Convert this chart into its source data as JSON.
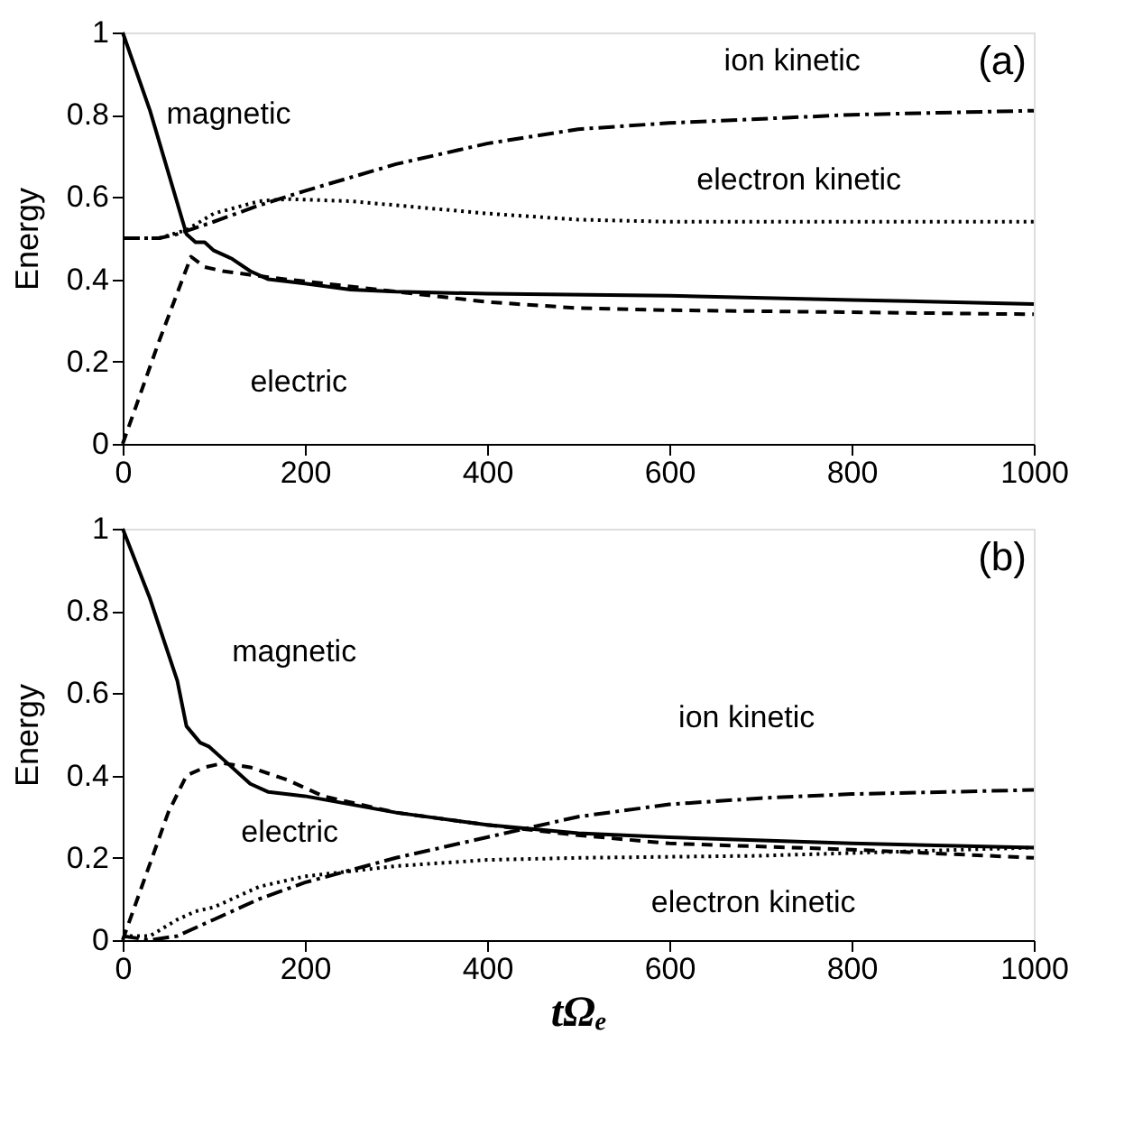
{
  "chart_data": [
    {
      "type": "line",
      "ylabel": "Energy",
      "annotations": [
        "(a)"
      ],
      "xlim": [
        0,
        1000
      ],
      "xticks": [
        0,
        200,
        400,
        600,
        800,
        1000
      ],
      "ylim": [
        0,
        1
      ],
      "yticks": [
        0,
        0.2,
        0.4,
        0.6,
        0.8,
        1
      ],
      "grid": false,
      "legend": false,
      "series": [
        {
          "name": "magnetic",
          "color": "#000000",
          "line_style": "solid",
          "x": [
            0,
            30,
            70,
            80,
            90,
            100,
            120,
            140,
            160,
            200,
            250,
            300,
            400,
            600,
            800,
            1000
          ],
          "values": [
            1,
            0.81,
            0.51,
            0.49,
            0.49,
            0.47,
            0.45,
            0.42,
            0.4,
            0.39,
            0.375,
            0.37,
            0.365,
            0.36,
            0.35,
            0.34
          ]
        },
        {
          "name": "electric",
          "color": "#000000",
          "line_style": "dashed",
          "x": [
            0,
            40,
            75,
            90,
            110,
            160,
            200,
            300,
            400,
            500,
            600,
            800,
            1000
          ],
          "values": [
            0,
            0.25,
            0.455,
            0.43,
            0.42,
            0.405,
            0.395,
            0.37,
            0.345,
            0.33,
            0.325,
            0.32,
            0.315
          ]
        },
        {
          "name": "ion kinetic",
          "color": "#000000",
          "line_style": "dashdot",
          "x": [
            0,
            40,
            60,
            100,
            150,
            200,
            300,
            400,
            500,
            600,
            800,
            1000
          ],
          "values": [
            0.5,
            0.5,
            0.51,
            0.54,
            0.58,
            0.615,
            0.68,
            0.73,
            0.765,
            0.78,
            0.8,
            0.81
          ]
        },
        {
          "name": "electron kinetic",
          "color": "#000000",
          "line_style": "dotted",
          "x": [
            0,
            40,
            70,
            100,
            150,
            180,
            250,
            300,
            400,
            500,
            600,
            800,
            1000
          ],
          "values": [
            0.5,
            0.5,
            0.52,
            0.56,
            0.59,
            0.595,
            0.59,
            0.58,
            0.56,
            0.545,
            0.54,
            0.54,
            0.54
          ]
        }
      ]
    },
    {
      "type": "line",
      "xlabel": "tΩₑ",
      "ylabel": "Energy",
      "annotations": [
        "(b)"
      ],
      "xlim": [
        0,
        1000
      ],
      "xticks": [
        0,
        200,
        400,
        600,
        800,
        1000
      ],
      "ylim": [
        0,
        1
      ],
      "yticks": [
        0,
        0.2,
        0.4,
        0.6,
        0.8,
        1
      ],
      "grid": false,
      "legend": false,
      "series": [
        {
          "name": "magnetic",
          "color": "#000000",
          "line_style": "solid",
          "x": [
            0,
            30,
            60,
            70,
            85,
            95,
            110,
            140,
            160,
            200,
            300,
            400,
            500,
            600,
            800,
            1000
          ],
          "values": [
            1,
            0.83,
            0.63,
            0.52,
            0.48,
            0.47,
            0.44,
            0.38,
            0.36,
            0.35,
            0.31,
            0.28,
            0.26,
            0.25,
            0.235,
            0.225
          ]
        },
        {
          "name": "electric",
          "color": "#000000",
          "line_style": "dashed",
          "x": [
            0,
            50,
            70,
            90,
            110,
            140,
            180,
            220,
            300,
            400,
            500,
            600,
            800,
            1000
          ],
          "values": [
            0,
            0.31,
            0.4,
            0.42,
            0.43,
            0.42,
            0.39,
            0.35,
            0.31,
            0.28,
            0.255,
            0.235,
            0.22,
            0.2
          ]
        },
        {
          "name": "ion kinetic",
          "color": "#000000",
          "line_style": "dashdot",
          "x": [
            0,
            30,
            60,
            100,
            150,
            200,
            300,
            400,
            500,
            600,
            700,
            800,
            1000
          ],
          "values": [
            0.01,
            0,
            0.01,
            0.05,
            0.1,
            0.14,
            0.2,
            0.25,
            0.3,
            0.33,
            0.345,
            0.355,
            0.365
          ]
        },
        {
          "name": "electron kinetic",
          "color": "#000000",
          "line_style": "dotted",
          "x": [
            0,
            30,
            60,
            80,
            100,
            150,
            200,
            300,
            400,
            500,
            700,
            1000
          ],
          "values": [
            0.01,
            0.01,
            0.05,
            0.07,
            0.08,
            0.13,
            0.155,
            0.18,
            0.195,
            0.2,
            0.205,
            0.225
          ]
        }
      ]
    }
  ]
}
